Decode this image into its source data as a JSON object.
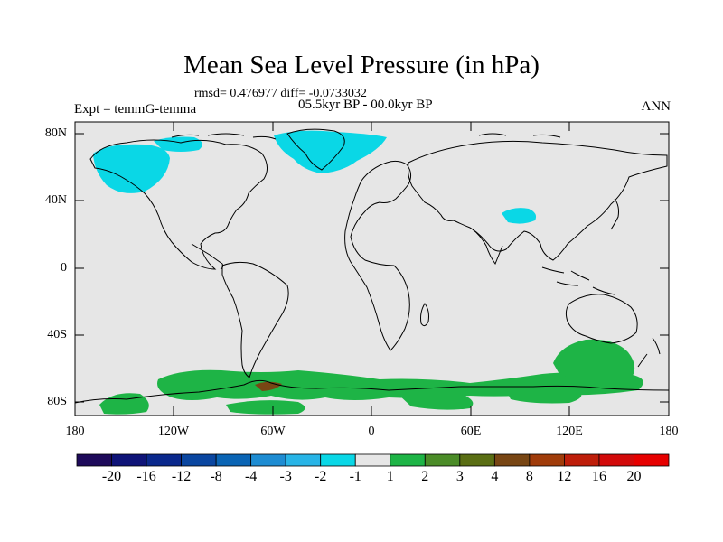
{
  "title": "Mean Sea Level Pressure (in hPa)",
  "stats_line": "rmsd= 0.476977 diff= -0.0733032",
  "period": "05.5kyr BP - 00.0kyr BP",
  "experiment": "Expt = temmG-temma",
  "season": "ANN",
  "lat_labels": [
    "80N",
    "40N",
    "0",
    "40S",
    "80S"
  ],
  "lon_labels": [
    "180",
    "120W",
    "60W",
    "0",
    "60E",
    "120E",
    "180"
  ],
  "colorbar": {
    "labels": [
      "-20",
      "-16",
      "-12",
      "-8",
      "-4",
      "-3",
      "-2",
      "-1",
      "1",
      "2",
      "3",
      "4",
      "8",
      "12",
      "16",
      "20"
    ],
    "colors": [
      "#1e0a5a",
      "#0f1478",
      "#0a288c",
      "#0a46a0",
      "#0a64b4",
      "#1e8cd2",
      "#28b4e6",
      "#0ad7e6",
      "#e6e6e6",
      "#1eb446",
      "#4b8c28",
      "#5a6e14",
      "#784614",
      "#a03c0a",
      "#be1e0a",
      "#d20a0a",
      "#e60000"
    ]
  },
  "map": {
    "ocean_color": "#e6e6e6",
    "positive_color": "#1eb446",
    "negative_color": "#0ad7e6"
  }
}
